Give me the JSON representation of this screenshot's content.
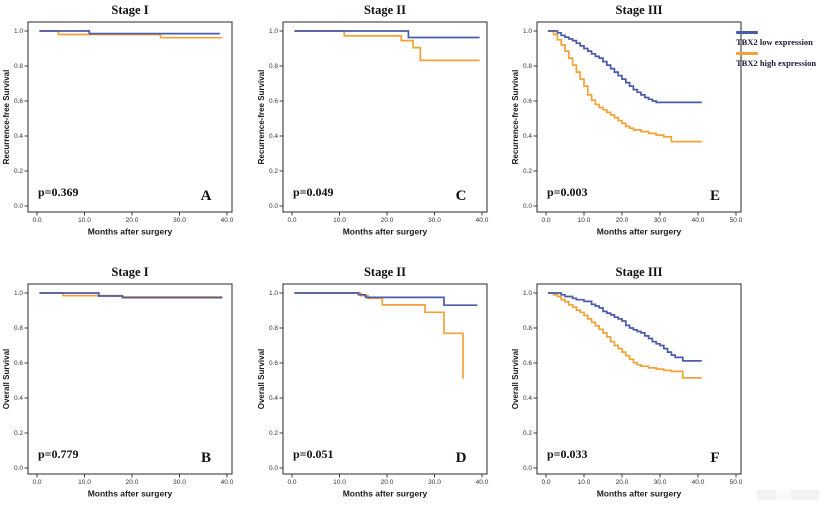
{
  "figure": {
    "colors": {
      "low": "#4a5ba8",
      "high": "#f4a238",
      "axis": "#3c3c3c",
      "tick_text": "#333333",
      "label_text": "#1a1a1a"
    },
    "legend": {
      "position": "right-of-panel-E",
      "items": [
        {
          "label": "TBX2 low expression",
          "color_key": "low"
        },
        {
          "label": "TBX2 high expression",
          "color_key": "high"
        }
      ]
    }
  },
  "chart_data": [
    {
      "id": "A",
      "type": "line",
      "subtype": "kaplan-meier-step",
      "title": "Stage I",
      "xlabel": "Months after surgery",
      "ylabel": "Recurrence-free Survival",
      "p_value": "p=0.369",
      "panel_letter": "A",
      "grid": false,
      "xticks": [
        0,
        10,
        20,
        30,
        40
      ],
      "yticks": [
        0.0,
        0.2,
        0.4,
        0.6,
        0.8,
        1.0
      ],
      "xlim": [
        0,
        43
      ],
      "ylim": [
        0,
        1.05
      ],
      "series": [
        {
          "name": "TBX2 low expression",
          "color_key": "low",
          "steps": [
            [
              0.5,
              1.0
            ],
            [
              11,
              0.985
            ],
            [
              38.5,
              0.985
            ]
          ]
        },
        {
          "name": "TBX2 high expression",
          "color_key": "high",
          "steps": [
            [
              0.5,
              1.0
            ],
            [
              4.5,
              0.98
            ],
            [
              26,
              0.962
            ],
            [
              39,
              0.962
            ]
          ]
        }
      ]
    },
    {
      "id": "C",
      "type": "line",
      "subtype": "kaplan-meier-step",
      "title": "Stage II",
      "xlabel": "Months after surgery",
      "ylabel": "Recurrence-free Survival",
      "p_value": "p=0.049",
      "panel_letter": "C",
      "grid": false,
      "xticks": [
        0,
        10,
        20,
        30,
        40
      ],
      "yticks": [
        0.0,
        0.2,
        0.4,
        0.6,
        0.8,
        1.0
      ],
      "xlim": [
        0,
        43
      ],
      "ylim": [
        0,
        1.05
      ],
      "series": [
        {
          "name": "TBX2 low expression",
          "color_key": "low",
          "steps": [
            [
              0.5,
              1.0
            ],
            [
              24.5,
              0.963
            ],
            [
              39.5,
              0.963
            ]
          ]
        },
        {
          "name": "TBX2 high expression",
          "color_key": "high",
          "steps": [
            [
              0.5,
              1.0
            ],
            [
              11,
              0.972
            ],
            [
              23,
              0.945
            ],
            [
              25.5,
              0.905
            ],
            [
              27,
              0.832
            ],
            [
              39.5,
              0.832
            ]
          ]
        }
      ]
    },
    {
      "id": "E",
      "type": "line",
      "subtype": "kaplan-meier-step",
      "title": "Stage III",
      "xlabel": "Months after surgery",
      "ylabel": "Recurrence-free Survival",
      "p_value": "p=0.003",
      "panel_letter": "E",
      "grid": false,
      "xticks": [
        0,
        10,
        20,
        30,
        40,
        50
      ],
      "yticks": [
        0.0,
        0.2,
        0.4,
        0.6,
        0.8,
        1.0
      ],
      "xlim": [
        0,
        53
      ],
      "ylim": [
        0,
        1.05
      ],
      "series": [
        {
          "name": "TBX2 low expression",
          "color_key": "low",
          "steps": [
            [
              0.5,
              1.0
            ],
            [
              3,
              0.99
            ],
            [
              4,
              0.975
            ],
            [
              5,
              0.965
            ],
            [
              6,
              0.955
            ],
            [
              7,
              0.945
            ],
            [
              8,
              0.93
            ],
            [
              9,
              0.915
            ],
            [
              10,
              0.9
            ],
            [
              11,
              0.885
            ],
            [
              12,
              0.87
            ],
            [
              13,
              0.855
            ],
            [
              14,
              0.845
            ],
            [
              15,
              0.825
            ],
            [
              16,
              0.805
            ],
            [
              17,
              0.785
            ],
            [
              18,
              0.765
            ],
            [
              19,
              0.745
            ],
            [
              20,
              0.725
            ],
            [
              21,
              0.705
            ],
            [
              22,
              0.685
            ],
            [
              23,
              0.665
            ],
            [
              24,
              0.65
            ],
            [
              25,
              0.635
            ],
            [
              26,
              0.62
            ],
            [
              27,
              0.61
            ],
            [
              28,
              0.6
            ],
            [
              29,
              0.592
            ],
            [
              41,
              0.592
            ]
          ]
        },
        {
          "name": "TBX2 high expression",
          "color_key": "high",
          "steps": [
            [
              0.5,
              1.0
            ],
            [
              2,
              0.98
            ],
            [
              3,
              0.95
            ],
            [
              4,
              0.92
            ],
            [
              5,
              0.885
            ],
            [
              6,
              0.845
            ],
            [
              7,
              0.805
            ],
            [
              8,
              0.765
            ],
            [
              9,
              0.725
            ],
            [
              10,
              0.685
            ],
            [
              11,
              0.635
            ],
            [
              12,
              0.605
            ],
            [
              13,
              0.58
            ],
            [
              14,
              0.563
            ],
            [
              15,
              0.55
            ],
            [
              16,
              0.535
            ],
            [
              17,
              0.52
            ],
            [
              18,
              0.505
            ],
            [
              19,
              0.488
            ],
            [
              20,
              0.472
            ],
            [
              21,
              0.455
            ],
            [
              22,
              0.445
            ],
            [
              23,
              0.435
            ],
            [
              25,
              0.425
            ],
            [
              27,
              0.415
            ],
            [
              29,
              0.405
            ],
            [
              31,
              0.395
            ],
            [
              33,
              0.368
            ],
            [
              41,
              0.368
            ]
          ]
        }
      ]
    },
    {
      "id": "B",
      "type": "line",
      "subtype": "kaplan-meier-step",
      "title": "Stage I",
      "xlabel": "Months after surgery",
      "ylabel": "Overall Survival",
      "p_value": "p=0.779",
      "panel_letter": "B",
      "grid": false,
      "xticks": [
        0,
        10,
        20,
        30,
        40
      ],
      "yticks": [
        0.0,
        0.2,
        0.4,
        0.6,
        0.8,
        1.0
      ],
      "xlim": [
        0,
        43
      ],
      "ylim": [
        0,
        1.05
      ],
      "series": [
        {
          "name": "TBX2 low expression",
          "color_key": "low",
          "steps": [
            [
              0.5,
              1.0
            ],
            [
              13,
              0.983
            ],
            [
              18,
              0.973
            ],
            [
              39,
              0.973
            ]
          ]
        },
        {
          "name": "TBX2 high expression",
          "color_key": "high",
          "steps": [
            [
              0.5,
              1.0
            ],
            [
              5.5,
              0.985
            ],
            [
              18,
              0.978
            ],
            [
              39,
              0.978
            ]
          ]
        }
      ]
    },
    {
      "id": "D",
      "type": "line",
      "subtype": "kaplan-meier-step",
      "title": "Stage II",
      "xlabel": "Months after surgery",
      "ylabel": "Overall Survival",
      "p_value": "p=0.051",
      "panel_letter": "D",
      "grid": false,
      "xticks": [
        0,
        10,
        20,
        30,
        40
      ],
      "yticks": [
        0.0,
        0.2,
        0.4,
        0.6,
        0.8,
        1.0
      ],
      "xlim": [
        0,
        43
      ],
      "ylim": [
        0,
        1.05
      ],
      "series": [
        {
          "name": "TBX2 low expression",
          "color_key": "low",
          "steps": [
            [
              0.5,
              1.0
            ],
            [
              14,
              0.99
            ],
            [
              15.5,
              0.975
            ],
            [
              32,
              0.93
            ],
            [
              39,
              0.93
            ]
          ]
        },
        {
          "name": "TBX2 high expression",
          "color_key": "high",
          "steps": [
            [
              0.5,
              1.0
            ],
            [
              14.5,
              0.985
            ],
            [
              16,
              0.97
            ],
            [
              19,
              0.932
            ],
            [
              28,
              0.89
            ],
            [
              32,
              0.77
            ],
            [
              36,
              0.51
            ]
          ]
        }
      ]
    },
    {
      "id": "F",
      "type": "line",
      "subtype": "kaplan-meier-step",
      "title": "Stage III",
      "xlabel": "Months after surgery",
      "ylabel": "Overall Survival",
      "p_value": "p=0.033",
      "panel_letter": "F",
      "grid": false,
      "xticks": [
        0,
        10,
        20,
        30,
        40,
        50
      ],
      "yticks": [
        0.0,
        0.2,
        0.4,
        0.6,
        0.8,
        1.0
      ],
      "xlim": [
        0,
        53
      ],
      "ylim": [
        0,
        1.05
      ],
      "series": [
        {
          "name": "TBX2 low expression",
          "color_key": "low",
          "steps": [
            [
              0.5,
              1.0
            ],
            [
              4,
              0.99
            ],
            [
              5,
              0.98
            ],
            [
              7,
              0.97
            ],
            [
              8,
              0.962
            ],
            [
              10,
              0.952
            ],
            [
              12,
              0.935
            ],
            [
              13,
              0.925
            ],
            [
              14,
              0.915
            ],
            [
              15,
              0.895
            ],
            [
              16,
              0.885
            ],
            [
              17,
              0.875
            ],
            [
              18,
              0.862
            ],
            [
              19,
              0.852
            ],
            [
              20,
              0.84
            ],
            [
              21,
              0.815
            ],
            [
              22,
              0.8
            ],
            [
              23,
              0.79
            ],
            [
              24,
              0.78
            ],
            [
              25,
              0.772
            ],
            [
              26,
              0.755
            ],
            [
              27,
              0.74
            ],
            [
              28,
              0.722
            ],
            [
              29,
              0.71
            ],
            [
              30,
              0.7
            ],
            [
              31,
              0.682
            ],
            [
              32,
              0.662
            ],
            [
              33,
              0.645
            ],
            [
              34,
              0.632
            ],
            [
              36,
              0.612
            ],
            [
              41,
              0.612
            ]
          ]
        },
        {
          "name": "TBX2 high expression",
          "color_key": "high",
          "steps": [
            [
              0.5,
              1.0
            ],
            [
              2,
              0.99
            ],
            [
              3,
              0.98
            ],
            [
              4,
              0.962
            ],
            [
              5,
              0.95
            ],
            [
              6,
              0.932
            ],
            [
              7,
              0.92
            ],
            [
              8,
              0.902
            ],
            [
              9,
              0.89
            ],
            [
              10,
              0.872
            ],
            [
              11,
              0.852
            ],
            [
              12,
              0.832
            ],
            [
              13,
              0.812
            ],
            [
              14,
              0.792
            ],
            [
              15,
              0.772
            ],
            [
              16,
              0.75
            ],
            [
              17,
              0.722
            ],
            [
              18,
              0.7
            ],
            [
              19,
              0.682
            ],
            [
              20,
              0.662
            ],
            [
              21,
              0.642
            ],
            [
              22,
              0.622
            ],
            [
              23,
              0.602
            ],
            [
              24,
              0.59
            ],
            [
              25,
              0.582
            ],
            [
              27,
              0.572
            ],
            [
              29,
              0.565
            ],
            [
              31,
              0.558
            ],
            [
              33,
              0.552
            ],
            [
              36,
              0.515
            ],
            [
              41,
              0.515
            ]
          ]
        }
      ]
    }
  ]
}
